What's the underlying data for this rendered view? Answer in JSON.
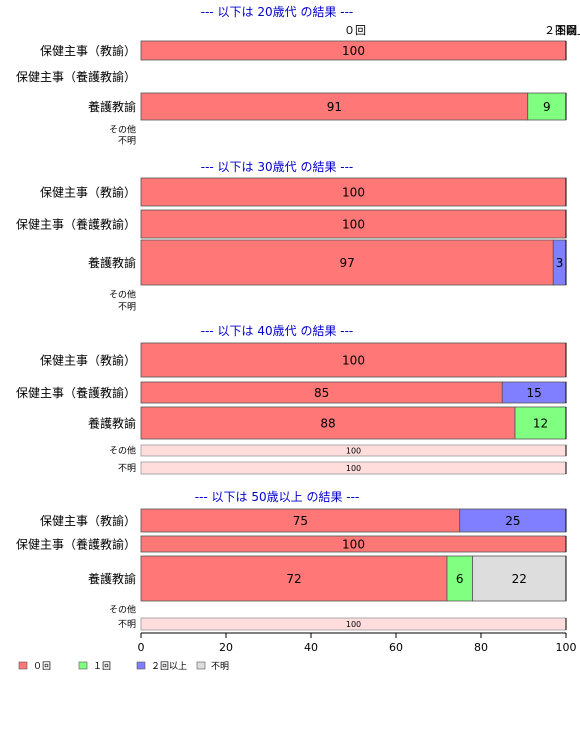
{
  "colors": {
    "0回": "#ff7777",
    "1回": "#80ff80",
    "2回以上": "#7f7fff",
    "不明": "#dddddd",
    "faded": "#ffdddd",
    "title": "#0000cc"
  },
  "chart_data": {
    "type": "bar",
    "orientation": "horizontal",
    "stacked": true,
    "xlim": [
      0,
      100
    ],
    "x_ticks": [
      "0",
      "20",
      "40",
      "60",
      "80",
      "100"
    ],
    "top_axis_labels": [
      "０回",
      "１回",
      "２回以上",
      "不明"
    ],
    "legend": {
      "position": "bottom-left",
      "entries": [
        "０回",
        "１回",
        "２回以上",
        "不明"
      ],
      "keys": [
        "0回",
        "1回",
        "2回以上",
        "不明"
      ]
    },
    "panels": [
      {
        "title": "--- 以下は 20歳代 の結果 ---",
        "rows": [
          {
            "label": "保健主事（教諭）",
            "size": "large",
            "segments": [
              {
                "series": "0回",
                "value": 100
              }
            ]
          },
          {
            "label": "保健主事（養護教諭）",
            "size": "large",
            "segments": []
          },
          {
            "label": "養護教諭",
            "size": "large",
            "segments": [
              {
                "series": "0回",
                "value": 91
              },
              {
                "series": "1回",
                "value": 9
              }
            ]
          },
          {
            "label": "その他",
            "size": "small",
            "segments": []
          },
          {
            "label": "不明",
            "size": "small",
            "segments": []
          }
        ]
      },
      {
        "title": "--- 以下は 30歳代 の結果 ---",
        "rows": [
          {
            "label": "保健主事（教諭）",
            "size": "large",
            "segments": [
              {
                "series": "0回",
                "value": 100
              }
            ]
          },
          {
            "label": "保健主事（養護教諭）",
            "size": "large",
            "segments": [
              {
                "series": "0回",
                "value": 100
              }
            ]
          },
          {
            "label": "養護教諭",
            "size": "large",
            "segments": [
              {
                "series": "0回",
                "value": 97
              },
              {
                "series": "2回以上",
                "value": 3
              }
            ]
          },
          {
            "label": "その他",
            "size": "small",
            "segments": []
          },
          {
            "label": "不明",
            "size": "small",
            "segments": []
          }
        ]
      },
      {
        "title": "--- 以下は 40歳代 の結果 ---",
        "rows": [
          {
            "label": "保健主事（教諭）",
            "size": "large",
            "segments": [
              {
                "series": "0回",
                "value": 100
              }
            ]
          },
          {
            "label": "保健主事（養護教諭）",
            "size": "large",
            "segments": [
              {
                "series": "0回",
                "value": 85
              },
              {
                "series": "2回以上",
                "value": 15
              }
            ]
          },
          {
            "label": "養護教諭",
            "size": "large",
            "segments": [
              {
                "series": "0回",
                "value": 88
              },
              {
                "series": "1回",
                "value": 12
              }
            ]
          },
          {
            "label": "その他",
            "size": "small",
            "faded": true,
            "segments": [
              {
                "series": "0回",
                "value": 100
              }
            ]
          },
          {
            "label": "不明",
            "size": "small",
            "faded": true,
            "segments": [
              {
                "series": "0回",
                "value": 100
              }
            ]
          }
        ]
      },
      {
        "title": "--- 以下は 50歳以上 の結果 ---",
        "rows": [
          {
            "label": "保健主事（教諭）",
            "size": "large",
            "segments": [
              {
                "series": "0回",
                "value": 75
              },
              {
                "series": "2回以上",
                "value": 25
              }
            ]
          },
          {
            "label": "保健主事（養護教諭）",
            "size": "large",
            "segments": [
              {
                "series": "0回",
                "value": 100
              }
            ]
          },
          {
            "label": "養護教諭",
            "size": "large",
            "segments": [
              {
                "series": "0回",
                "value": 72
              },
              {
                "series": "1回",
                "value": 6
              },
              {
                "series": "不明",
                "value": 22
              }
            ]
          },
          {
            "label": "その他",
            "size": "small",
            "segments": []
          },
          {
            "label": "不明",
            "size": "small",
            "faded": true,
            "segments": [
              {
                "series": "0回",
                "value": 100
              }
            ]
          }
        ]
      }
    ]
  }
}
